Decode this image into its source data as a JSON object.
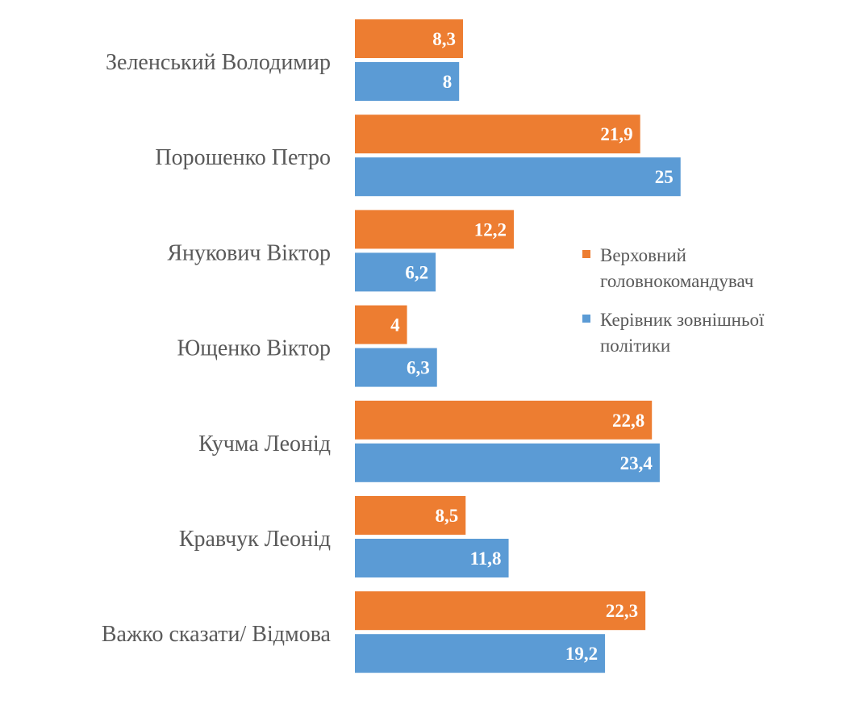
{
  "chart_data": {
    "type": "bar",
    "orientation": "horizontal",
    "categories": [
      "Зеленський Володимир",
      "Порошенко Петро",
      "Янукович Віктор",
      "Ющенко Віктор",
      "Кучма Леонід",
      "Кравчук Леонід",
      "Важко сказати/ Відмова"
    ],
    "series": [
      {
        "name": "Верховний головнокомандувач",
        "legend_lines": [
          "Верховний",
          "головнокомандувач"
        ],
        "color": "#ED7D31",
        "values": [
          8.3,
          21.9,
          12.2,
          4,
          22.8,
          8.5,
          22.3
        ],
        "labels": [
          "8,3",
          "21,9",
          "12,2",
          "4",
          "22,8",
          "8,5",
          "22,3"
        ]
      },
      {
        "name": "Керівник зовнішньої політики",
        "legend_lines": [
          "Керівник зовнішньої",
          "політики"
        ],
        "color": "#5B9BD5",
        "values": [
          8,
          25,
          6.2,
          6.3,
          23.4,
          11.8,
          19.2
        ],
        "labels": [
          "8",
          "25",
          "6,2",
          "6,3",
          "23,4",
          "11,8",
          "19,2"
        ]
      }
    ],
    "xlim": [
      0,
      26
    ],
    "grid": false,
    "axis_visible": false,
    "legend_position": "right"
  }
}
